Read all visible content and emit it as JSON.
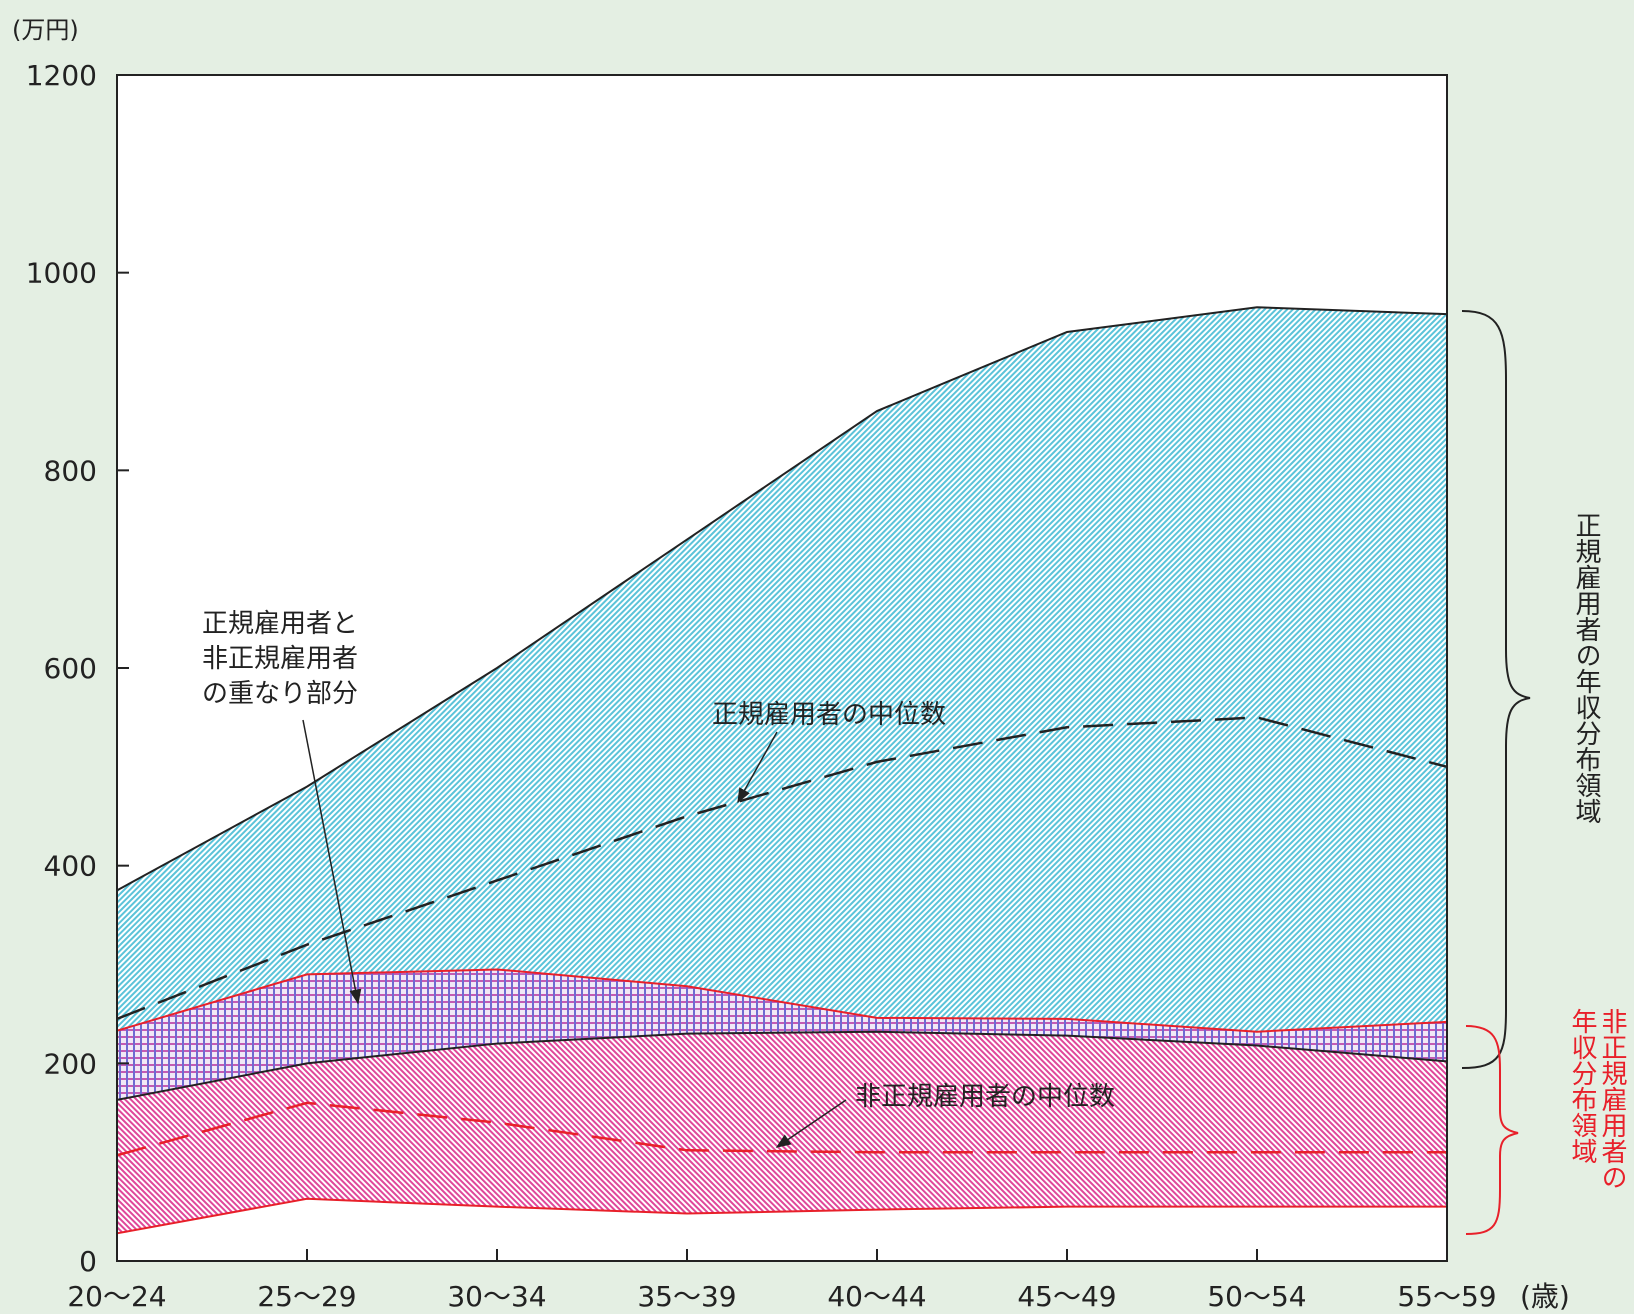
{
  "chart_data": {
    "type": "area",
    "y_unit_label": "(万円)",
    "x_unit_label": "(歳)",
    "categories": [
      "20～24",
      "25～29",
      "30～34",
      "35～39",
      "40～44",
      "45～49",
      "50～54",
      "55～59"
    ],
    "ylim": [
      0,
      1200
    ],
    "yticks": [
      0,
      200,
      400,
      600,
      800,
      1000,
      1200
    ],
    "grid": false,
    "series": [
      {
        "key": "regular_upper",
        "values": [
          375,
          480,
          600,
          730,
          860,
          940,
          965,
          958
        ]
      },
      {
        "key": "regular_median",
        "values": [
          245,
          320,
          385,
          450,
          505,
          540,
          550,
          500
        ]
      },
      {
        "key": "regular_lower",
        "values": [
          163,
          200,
          220,
          230,
          232,
          228,
          218,
          202
        ]
      },
      {
        "key": "nonreg_upper",
        "values": [
          233,
          290,
          295,
          278,
          246,
          245,
          232,
          242
        ]
      },
      {
        "key": "nonreg_median",
        "values": [
          107,
          160,
          140,
          112,
          110,
          110,
          110,
          110
        ]
      },
      {
        "key": "nonreg_lower",
        "values": [
          28,
          63,
          55,
          48,
          52,
          55,
          55,
          55
        ]
      }
    ],
    "annotations": {
      "overlap": [
        "正規雇用者と",
        "非正規雇用者",
        "の重なり部分"
      ],
      "regular_median": "正規雇用者の中位数",
      "nonreg_median": "非正規雇用者の中位数",
      "regular_range": "正規雇用者の年収分布領域",
      "nonreg_range_col1": "非正規雇用者の",
      "nonreg_range_col2": "年収分布領域"
    },
    "colors": {
      "regular_fill": "#5bc3d9",
      "nonreg_fill": "#e0479a",
      "overlap_fill": "#8a6fd0",
      "regular_line": "#222222",
      "nonreg_line": "#e8202a",
      "nonreg_text": "#e8202a",
      "plot_bg": "#ffffff",
      "page_bg": "#e4efe3"
    }
  }
}
